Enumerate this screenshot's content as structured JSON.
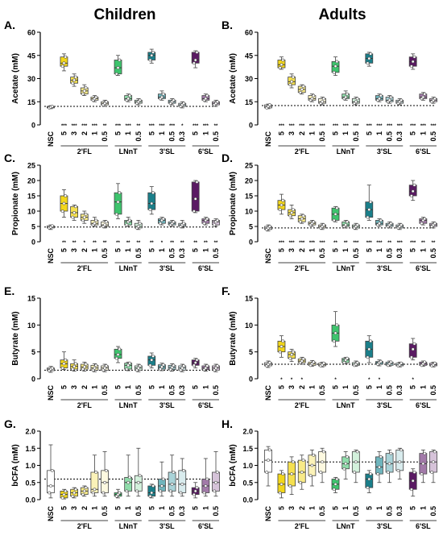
{
  "columns": [
    "Children",
    "Adults"
  ],
  "categories": [
    "NSC",
    "5",
    "3",
    "2",
    "1",
    "0.5",
    "5",
    "1",
    "0.5",
    "5",
    "1",
    "0.5",
    "0.3",
    "5",
    "1",
    "0.5"
  ],
  "groups": [
    "2'FL",
    "LNnT",
    "3'SL",
    "6'SL"
  ],
  "colors": {
    "NSC": "#ffffff",
    "2'FL": [
      "#f2d61a",
      "#f5e04f",
      "#f8ea87",
      "#fbf2b8",
      "#fdf9e0"
    ],
    "LNnT": [
      "#3dc46d",
      "#8fdcaa",
      "#d3f1dc"
    ],
    "3'SL": [
      "#1a7f8a",
      "#6fb5bd",
      "#a9d3d8",
      "#d9ecee"
    ],
    "6'SL": [
      "#5a1a63",
      "#a27aa9",
      "#d6c3d9"
    ]
  },
  "chart_data": [
    {
      "panel": "A.",
      "type": "box",
      "ylabel": "Acetate (mM)",
      "ylim": [
        0,
        60
      ],
      "yticks": [
        0,
        15,
        30,
        45,
        60
      ],
      "ref": 12,
      "medians": [
        11.5,
        40,
        29,
        22,
        17,
        14,
        37,
        17,
        15,
        45,
        18,
        15,
        13,
        42,
        17,
        14
      ],
      "q1": [
        11,
        38,
        27,
        20,
        16,
        13,
        33,
        16,
        14,
        42,
        17,
        14,
        12,
        40,
        16,
        13
      ],
      "q3": [
        12,
        44,
        31,
        24,
        18,
        15,
        42,
        19,
        16,
        47,
        20,
        16,
        14,
        47,
        19,
        15
      ],
      "wlo": [
        10.5,
        35,
        25,
        19,
        15,
        12,
        32,
        15,
        13,
        40,
        16,
        13,
        11,
        37,
        15,
        12
      ],
      "whi": [
        12.5,
        46,
        33,
        26,
        19,
        16,
        45,
        20,
        17,
        49,
        22,
        17,
        15,
        48,
        20,
        16
      ],
      "sig": [
        "",
        "***",
        "***",
        "***",
        "***",
        "**",
        "***",
        "***",
        "**",
        "***",
        "***",
        "***",
        "*",
        "***",
        "***",
        "**"
      ]
    },
    {
      "panel": "B.",
      "type": "box",
      "ylabel": "Acetate (mM)",
      "ylim": [
        0,
        60
      ],
      "yticks": [
        0,
        15,
        30,
        45,
        60
      ],
      "ref": 12.5,
      "medians": [
        12,
        39,
        28,
        23,
        17,
        15,
        38,
        18,
        15,
        43,
        17,
        16,
        15,
        41,
        18,
        16
      ],
      "q1": [
        11,
        37,
        26,
        21,
        16,
        14,
        34,
        17,
        14,
        40,
        16,
        15,
        14,
        38,
        17,
        15
      ],
      "q3": [
        13,
        42,
        31,
        25,
        19,
        17,
        41,
        20,
        17,
        46,
        19,
        18,
        16,
        44,
        20,
        17
      ],
      "wlo": [
        10.5,
        36,
        24,
        20,
        15,
        13,
        32,
        16,
        13,
        38,
        15,
        14,
        13,
        36,
        16,
        14
      ],
      "whi": [
        13.5,
        44,
        33,
        26,
        20,
        18,
        44,
        22,
        18,
        47,
        20,
        19,
        17,
        46,
        21,
        18
      ],
      "sig": [
        "",
        "***",
        "***",
        "***",
        "***",
        "***",
        "***",
        "***",
        "***",
        "***",
        "***",
        "***",
        "***",
        "***",
        "***",
        "***"
      ]
    },
    {
      "panel": "C.",
      "type": "box",
      "ylabel": "Propionate (mM)",
      "ylim": [
        0,
        25
      ],
      "yticks": [
        0,
        5,
        10,
        15,
        20,
        25
      ],
      "ref": 4.8,
      "medians": [
        4.8,
        12.5,
        9.5,
        8,
        6,
        5.5,
        13,
        6.5,
        5,
        12.5,
        7,
        6,
        5.5,
        14,
        7,
        6.5
      ],
      "q1": [
        4.5,
        10,
        8,
        7,
        5.5,
        5,
        9,
        5.5,
        4.5,
        10.5,
        6,
        5.5,
        5,
        10,
        6,
        5.5
      ],
      "q3": [
        5.2,
        15,
        11.5,
        9,
        7,
        6.5,
        16,
        7,
        6,
        16,
        7.5,
        6.5,
        6,
        19.5,
        7.5,
        7
      ],
      "wlo": [
        4,
        8,
        7,
        6,
        5,
        4.5,
        7.5,
        5,
        4,
        9,
        5.5,
        5,
        4.5,
        9.5,
        5.5,
        5
      ],
      "whi": [
        5.5,
        17,
        12,
        10,
        8,
        7,
        19,
        8,
        7,
        18,
        8,
        7,
        7,
        20,
        8,
        7.5
      ],
      "sig": [
        "",
        "**",
        "**",
        "*",
        "**",
        "**",
        "**",
        "**",
        "**",
        "**",
        "*",
        "**",
        "**",
        "**",
        "**",
        "**"
      ]
    },
    {
      "panel": "D.",
      "type": "box",
      "ylabel": "Propionate (mM)",
      "ylim": [
        0,
        25
      ],
      "yticks": [
        0,
        5,
        10,
        15,
        20,
        25
      ],
      "ref": 4.5,
      "medians": [
        4.5,
        12,
        9.5,
        7.5,
        6,
        5,
        9,
        5.5,
        5,
        10.5,
        6,
        5.5,
        5,
        16.5,
        7,
        5.5
      ],
      "q1": [
        4,
        10.5,
        8.5,
        6.5,
        5.5,
        4.5,
        7,
        5,
        4.5,
        8,
        5.5,
        5,
        4.5,
        15,
        6,
        5
      ],
      "q3": [
        5,
        13.5,
        10.5,
        8.5,
        6.5,
        5.5,
        11,
        6.5,
        5.5,
        13,
        7,
        6,
        5.5,
        18.5,
        7.5,
        6
      ],
      "wlo": [
        3.5,
        9,
        7.5,
        6,
        5,
        4,
        6.5,
        4.5,
        4,
        7,
        5,
        4.5,
        4,
        13.5,
        5.5,
        4.5
      ],
      "whi": [
        5.5,
        15.5,
        12,
        9,
        7,
        6,
        11.5,
        7,
        6,
        18.5,
        7.5,
        6.5,
        6,
        20,
        8,
        6.5
      ],
      "sig": [
        "",
        "***",
        "***",
        "***",
        "***",
        "***",
        "**",
        "**",
        "***",
        "***",
        "***",
        "**",
        "***",
        "***",
        "**",
        "**"
      ]
    },
    {
      "panel": "E.",
      "type": "box",
      "ylabel": "Butyrate (mM)",
      "ylim": [
        0,
        15
      ],
      "yticks": [
        0,
        5,
        10,
        15
      ],
      "ref": 1.6,
      "medians": [
        1.8,
        2.8,
        2.3,
        2.2,
        2,
        2,
        4.5,
        2.5,
        2,
        3.5,
        2.2,
        2.1,
        2,
        3,
        2,
        2
      ],
      "q1": [
        1.5,
        2,
        1.8,
        1.8,
        1.6,
        1.6,
        3.8,
        1.8,
        1.6,
        2.5,
        1.8,
        1.7,
        1.6,
        2.5,
        1.7,
        1.6
      ],
      "q3": [
        2,
        3.5,
        2.8,
        2.7,
        2.5,
        2.4,
        5.5,
        2.9,
        2.4,
        4.2,
        2.6,
        2.5,
        2.4,
        3.5,
        2.4,
        2.4
      ],
      "wlo": [
        1.2,
        1.7,
        1.4,
        1.4,
        1.3,
        1.3,
        3,
        1.5,
        1.3,
        2,
        1.5,
        1.4,
        1.3,
        2,
        1.4,
        1.3
      ],
      "whi": [
        2.3,
        5,
        3.5,
        3.1,
        2.8,
        2.7,
        6,
        3.1,
        2.7,
        4.8,
        2.9,
        2.8,
        2.7,
        3.8,
        2.7,
        2.7
      ],
      "sig": [
        "",
        "",
        "",
        "",
        "",
        "",
        "",
        "",
        "",
        "",
        "",
        "",
        "",
        "",
        "",
        ""
      ]
    },
    {
      "panel": "F.",
      "type": "box",
      "ylabel": "Butyrate (mM)",
      "ylim": [
        0,
        15
      ],
      "yticks": [
        0,
        5,
        10,
        15
      ],
      "ref": 2.7,
      "medians": [
        2.7,
        6,
        4.5,
        3.3,
        2.8,
        2.6,
        8.5,
        3.5,
        2.7,
        5.5,
        3,
        2.8,
        2.6,
        5.5,
        2.8,
        2.6
      ],
      "q1": [
        2.4,
        5,
        3.8,
        3,
        2.5,
        2.4,
        7,
        3,
        2.5,
        4,
        2.7,
        2.5,
        2.4,
        4,
        2.5,
        2.4
      ],
      "q3": [
        3,
        7,
        5,
        3.7,
        3.1,
        2.9,
        10,
        3.8,
        3,
        7,
        3.2,
        3.1,
        2.9,
        6.5,
        3.1,
        2.9
      ],
      "wlo": [
        2.1,
        4,
        3.2,
        2.7,
        2.3,
        2.2,
        6,
        2.8,
        2.3,
        3,
        2.4,
        2.3,
        2.2,
        3.5,
        2.3,
        2.2
      ],
      "whi": [
        3.3,
        8,
        5.5,
        4,
        3.4,
        3.1,
        12.5,
        4,
        3.3,
        8,
        3.5,
        3.3,
        3.1,
        7.5,
        3.3,
        3.1
      ],
      "sig": [
        "",
        "*",
        "*",
        "*",
        "",
        "",
        "*",
        "",
        "",
        "*",
        "*",
        "",
        "",
        "*",
        "",
        ""
      ]
    },
    {
      "panel": "G.",
      "type": "box",
      "ylabel": "bCFA (mM)",
      "ylim": [
        0,
        2
      ],
      "yticks": [
        0,
        0.5,
        1,
        1.5,
        2
      ],
      "yticklabels": [
        "0.0",
        "0.5",
        "1.0",
        "1.5",
        "2.0"
      ],
      "ref": 0.6,
      "medians": [
        0.4,
        0.15,
        0.2,
        0.25,
        0.3,
        0.5,
        0.15,
        0.5,
        0.5,
        0.2,
        0.4,
        0.45,
        0.45,
        0.25,
        0.4,
        0.5
      ],
      "q1": [
        0.2,
        0.05,
        0.1,
        0.15,
        0.2,
        0.2,
        0.1,
        0.25,
        0.25,
        0.1,
        0.25,
        0.25,
        0.2,
        0.15,
        0.2,
        0.25
      ],
      "q3": [
        0.85,
        0.25,
        0.3,
        0.35,
        0.8,
        0.85,
        0.2,
        0.65,
        0.7,
        0.4,
        0.6,
        0.8,
        0.85,
        0.35,
        0.6,
        0.8
      ],
      "wlo": [
        0.05,
        0.02,
        0.05,
        0.1,
        0.1,
        0.1,
        0.05,
        0.1,
        0.1,
        0.05,
        0.1,
        0.1,
        0.1,
        0.05,
        0.1,
        0.1
      ],
      "whi": [
        1.6,
        0.3,
        0.35,
        0.4,
        1.3,
        1.4,
        0.3,
        1.3,
        1.5,
        0.45,
        1.1,
        1.3,
        1.2,
        0.5,
        1.2,
        1.4
      ],
      "sig": [
        "",
        "",
        "",
        "",
        "",
        "",
        "",
        "",
        "",
        "",
        "",
        "",
        "",
        "",
        "",
        ""
      ]
    },
    {
      "panel": "H.",
      "type": "box",
      "ylabel": "bCFA (mM)",
      "ylim": [
        0,
        2
      ],
      "yticks": [
        0,
        0.5,
        1,
        1.5,
        2
      ],
      "yticklabels": [
        "0.0",
        "0.5",
        "1.0",
        "1.5",
        "2.0"
      ],
      "ref": 1.1,
      "medians": [
        1.15,
        0.45,
        0.75,
        0.8,
        1,
        1.1,
        0.45,
        1.05,
        1.1,
        0.6,
        0.95,
        1.05,
        1.1,
        0.55,
        1.05,
        1.1
      ],
      "q1": [
        0.8,
        0.2,
        0.4,
        0.5,
        0.7,
        0.8,
        0.3,
        0.9,
        0.8,
        0.35,
        0.75,
        0.8,
        0.85,
        0.3,
        0.75,
        0.8
      ],
      "q3": [
        1.45,
        0.75,
        1.1,
        1.15,
        1.3,
        1.4,
        0.6,
        1.25,
        1.4,
        0.75,
        1.25,
        1.35,
        1.45,
        0.8,
        1.35,
        1.4
      ],
      "wlo": [
        0.4,
        0.05,
        0.15,
        0.3,
        0.4,
        0.5,
        0.2,
        0.6,
        0.5,
        0.2,
        0.5,
        0.5,
        0.6,
        0.1,
        0.5,
        0.5
      ],
      "whi": [
        1.55,
        0.85,
        1.25,
        1.3,
        1.45,
        1.5,
        0.65,
        1.4,
        1.45,
        0.85,
        1.4,
        1.45,
        1.5,
        0.9,
        1.45,
        1.45
      ],
      "sig": [
        "",
        "",
        "",
        "",
        "",
        "",
        "",
        "",
        "",
        "",
        "",
        "",
        "",
        "",
        "",
        ""
      ]
    }
  ]
}
